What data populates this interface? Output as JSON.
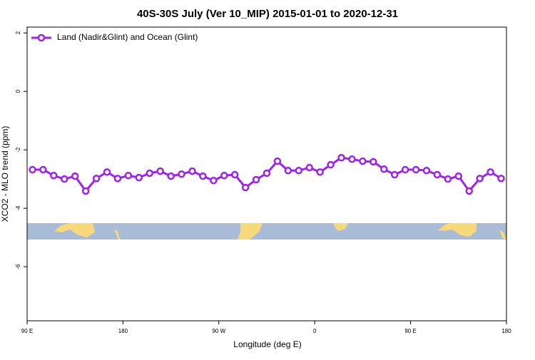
{
  "chart_data": {
    "type": "line",
    "title": "40S-30S July (Ver 10_MIP)   2015-01-01 to 2020-12-31",
    "x_label": "Longitude (deg E)",
    "y_label": "XCO2 - MLO trend (ppm)",
    "x": [
      95,
      105,
      115,
      125,
      135,
      145,
      155,
      165,
      175,
      185,
      195,
      205,
      215,
      225,
      235,
      245,
      255,
      265,
      275,
      285,
      295,
      305,
      315,
      325,
      335,
      345,
      355,
      365,
      375,
      385,
      395,
      405,
      415,
      425,
      435,
      445,
      455,
      465,
      475,
      485,
      495,
      505,
      515,
      525,
      535
    ],
    "series": [
      {
        "name": "Land (Nadir&Glint) and Ocean (Glint)",
        "color": "#a020f0",
        "values": [
          -2.68,
          -2.68,
          -2.88,
          -3.0,
          -2.9,
          -3.41,
          -2.98,
          -2.76,
          -2.98,
          -2.88,
          -2.95,
          -2.8,
          -2.73,
          -2.9,
          -2.83,
          -2.73,
          -2.9,
          -3.05,
          -2.88,
          -2.85,
          -3.29,
          -3.02,
          -2.8,
          -2.39,
          -2.71,
          -2.71,
          -2.61,
          -2.76,
          -2.51,
          -2.27,
          -2.32,
          -2.39,
          -2.41,
          -2.66,
          -2.85,
          -2.68,
          -2.68,
          -2.71,
          -2.85,
          -3.0,
          -2.9,
          -3.41,
          -2.98,
          -2.76,
          -2.98
        ]
      }
    ],
    "xlim": [
      90,
      540
    ],
    "xticks": [
      {
        "value": 90,
        "label": "90 E"
      },
      {
        "value": 180,
        "label": "180"
      },
      {
        "value": 270,
        "label": "90 W"
      },
      {
        "value": 360,
        "label": "0"
      },
      {
        "value": 450,
        "label": "90 E"
      },
      {
        "value": 540,
        "label": "180"
      }
    ],
    "ylim": [
      -7.85,
      2.2
    ],
    "yticks": [
      2,
      0,
      -2,
      -4,
      -6
    ],
    "legend": "top-left"
  }
}
